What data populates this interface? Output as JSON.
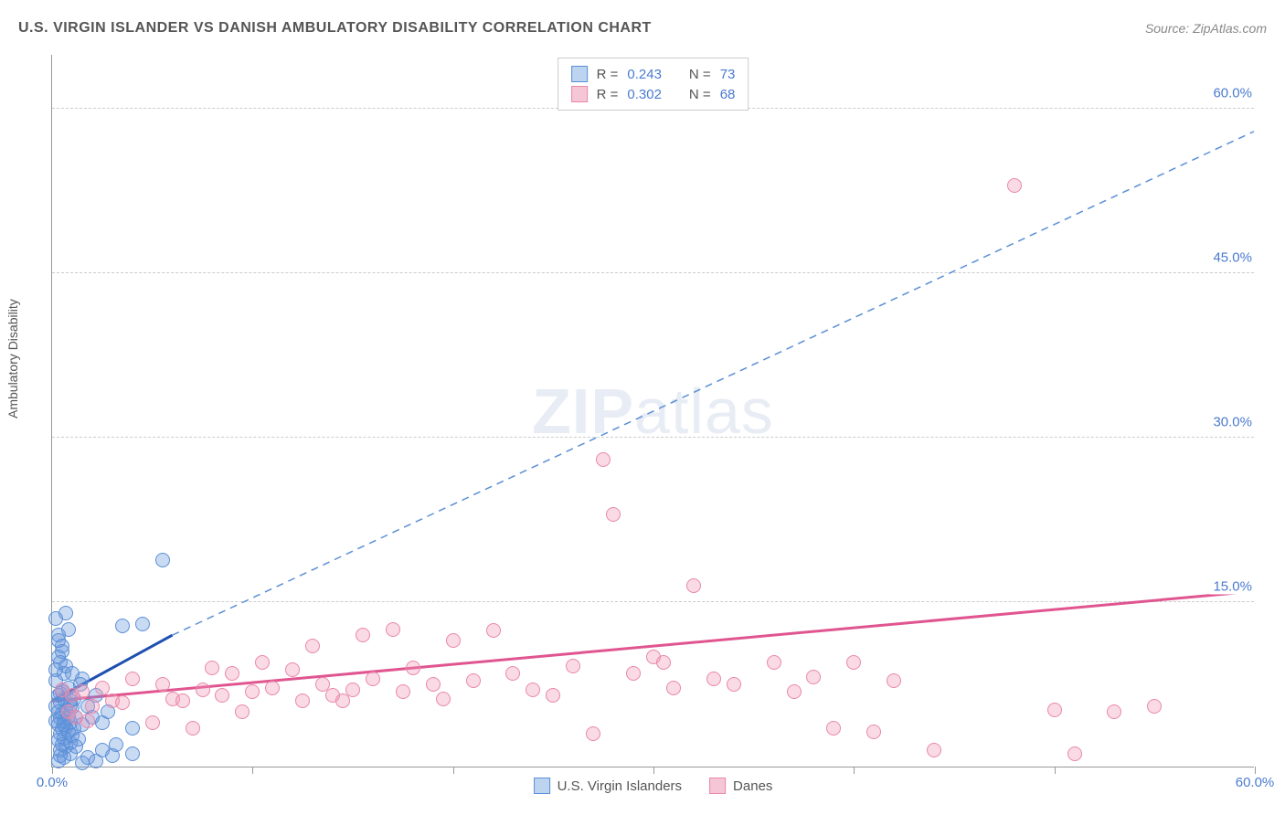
{
  "title": "U.S. VIRGIN ISLANDER VS DANISH AMBULATORY DISABILITY CORRELATION CHART",
  "source": "Source: ZipAtlas.com",
  "y_axis_label": "Ambulatory Disability",
  "watermark_bold": "ZIP",
  "watermark_light": "atlas",
  "chart": {
    "type": "scatter",
    "xlim": [
      0,
      60
    ],
    "ylim": [
      0,
      65
    ],
    "x_ticks": [
      0,
      10,
      20,
      30,
      40,
      50,
      60
    ],
    "x_tick_labels_shown": {
      "0": "0.0%",
      "60": "60.0%"
    },
    "y_ticks": [
      15,
      30,
      45,
      60
    ],
    "y_tick_labels": [
      "15.0%",
      "30.0%",
      "45.0%",
      "60.0%"
    ],
    "grid_color": "#cccccc",
    "axis_color": "#999999",
    "tick_label_color": "#4a7bd0",
    "background_color": "#ffffff",
    "point_radius": 8,
    "series": [
      {
        "name": "U.S. Virgin Islanders",
        "color_fill": "rgba(100, 150, 220, 0.35)",
        "color_stroke": "#5b8fd6",
        "legend_swatch_fill": "#bdd4f0",
        "legend_swatch_stroke": "#5b8fd6",
        "r_value": "0.243",
        "n_value": "73",
        "trend_solid": {
          "x1": 0,
          "y1": 6,
          "x2": 6,
          "y2": 12,
          "color": "#1f4fb0",
          "width": 3
        },
        "trend_dashed": {
          "x1": 6,
          "y1": 12,
          "x2": 60,
          "y2": 58,
          "color": "#5b8fd6",
          "width": 1.5
        },
        "points": [
          [
            0.2,
            13.5
          ],
          [
            0.3,
            12
          ],
          [
            0.5,
            11
          ],
          [
            0.3,
            10
          ],
          [
            0.7,
            14
          ],
          [
            0.4,
            9.5
          ],
          [
            0.6,
            8.5
          ],
          [
            0.2,
            7.8
          ],
          [
            0.8,
            7.2
          ],
          [
            0.5,
            6.8
          ],
          [
            0.3,
            6.5
          ],
          [
            0.6,
            6.2
          ],
          [
            0.9,
            6
          ],
          [
            0.4,
            5.8
          ],
          [
            0.2,
            5.5
          ],
          [
            1.0,
            5.4
          ],
          [
            0.7,
            5.2
          ],
          [
            0.3,
            5
          ],
          [
            0.5,
            4.8
          ],
          [
            0.8,
            4.6
          ],
          [
            0.4,
            4.4
          ],
          [
            1.2,
            4.5
          ],
          [
            0.6,
            4.2
          ],
          [
            0.9,
            4
          ],
          [
            0.3,
            3.8
          ],
          [
            0.7,
            3.6
          ],
          [
            1.1,
            3.5
          ],
          [
            0.5,
            3.4
          ],
          [
            0.8,
            3.2
          ],
          [
            0.4,
            3
          ],
          [
            1.0,
            2.8
          ],
          [
            0.6,
            2.6
          ],
          [
            0.3,
            2.4
          ],
          [
            0.9,
            2.2
          ],
          [
            0.5,
            2
          ],
          [
            1.3,
            2.5
          ],
          [
            0.7,
            1.8
          ],
          [
            0.4,
            1.5
          ],
          [
            1.5,
            3.8
          ],
          [
            2.0,
            4.5
          ],
          [
            1.8,
            5.5
          ],
          [
            2.5,
            4
          ],
          [
            1.5,
            8
          ],
          [
            2.2,
            6.5
          ],
          [
            3.5,
            12.8
          ],
          [
            2.8,
            5
          ],
          [
            1.2,
            1.8
          ],
          [
            2.5,
            1.5
          ],
          [
            3.2,
            2
          ],
          [
            1.8,
            0.8
          ],
          [
            2.2,
            0.5
          ],
          [
            5.5,
            18.8
          ],
          [
            4.5,
            13
          ],
          [
            4.0,
            3.5
          ],
          [
            0.2,
            4.2
          ],
          [
            0.6,
            3.8
          ],
          [
            0.4,
            6.7
          ],
          [
            0.9,
            5.6
          ],
          [
            1.1,
            6.2
          ],
          [
            1.4,
            7.5
          ],
          [
            0.2,
            8.8
          ],
          [
            0.7,
            9.2
          ],
          [
            0.5,
            10.5
          ],
          [
            0.3,
            11.5
          ],
          [
            1.0,
            8.5
          ],
          [
            0.8,
            12.5
          ],
          [
            0.3,
            0.5
          ],
          [
            0.6,
            0.8
          ],
          [
            0.9,
            1.2
          ],
          [
            0.4,
            1.0
          ],
          [
            3.0,
            1.0
          ],
          [
            4.0,
            1.2
          ],
          [
            1.5,
            0.3
          ]
        ]
      },
      {
        "name": "Danes",
        "color_fill": "rgba(240, 150, 180, 0.35)",
        "color_stroke": "#e888aa",
        "legend_swatch_fill": "#f5c6d5",
        "legend_swatch_stroke": "#e888aa",
        "r_value": "0.302",
        "n_value": "68",
        "trend_solid": {
          "x1": 0,
          "y1": 6,
          "x2": 60,
          "y2": 16,
          "color": "#e05590",
          "width": 3
        },
        "trend_dashed": null,
        "points": [
          [
            0.5,
            7
          ],
          [
            1,
            6.5
          ],
          [
            1.5,
            6.8
          ],
          [
            2,
            5.5
          ],
          [
            2.5,
            7.2
          ],
          [
            3,
            6
          ],
          [
            3.5,
            5.8
          ],
          [
            4,
            8
          ],
          [
            5,
            4
          ],
          [
            5.5,
            7.5
          ],
          [
            6,
            6.2
          ],
          [
            6.5,
            6
          ],
          [
            7,
            3.5
          ],
          [
            7.5,
            7
          ],
          [
            8,
            9
          ],
          [
            8.5,
            6.5
          ],
          [
            9,
            8.5
          ],
          [
            9.5,
            5
          ],
          [
            10,
            6.8
          ],
          [
            10.5,
            9.5
          ],
          [
            11,
            7.2
          ],
          [
            12,
            8.8
          ],
          [
            12.5,
            6
          ],
          [
            13,
            11
          ],
          [
            13.5,
            7.5
          ],
          [
            14,
            6.5
          ],
          [
            14.5,
            6
          ],
          [
            15,
            7
          ],
          [
            15.5,
            12
          ],
          [
            16,
            8
          ],
          [
            17,
            12.5
          ],
          [
            17.5,
            6.8
          ],
          [
            18,
            9
          ],
          [
            19,
            7.5
          ],
          [
            19.5,
            6.2
          ],
          [
            20,
            11.5
          ],
          [
            21,
            7.8
          ],
          [
            22,
            12.4
          ],
          [
            23,
            8.5
          ],
          [
            24,
            7
          ],
          [
            25,
            6.5
          ],
          [
            26,
            9.2
          ],
          [
            27,
            3
          ],
          [
            27.5,
            28
          ],
          [
            28,
            23
          ],
          [
            29,
            8.5
          ],
          [
            30,
            10
          ],
          [
            30.5,
            9.5
          ],
          [
            31,
            7.2
          ],
          [
            32,
            16.5
          ],
          [
            33,
            8
          ],
          [
            34,
            7.5
          ],
          [
            36,
            9.5
          ],
          [
            37,
            6.8
          ],
          [
            38,
            8.2
          ],
          [
            39,
            3.5
          ],
          [
            40,
            9.5
          ],
          [
            41,
            3.2
          ],
          [
            42,
            7.8
          ],
          [
            44,
            1.5
          ],
          [
            48,
            53
          ],
          [
            50,
            5.2
          ],
          [
            51,
            1.2
          ],
          [
            53,
            5
          ],
          [
            55,
            5.5
          ],
          [
            0.8,
            5
          ],
          [
            1.2,
            4.5
          ],
          [
            1.8,
            4.2
          ]
        ]
      }
    ]
  },
  "legend_top_labels": {
    "r": "R =",
    "n": "N ="
  },
  "legend_bottom": [
    "U.S. Virgin Islanders",
    "Danes"
  ]
}
